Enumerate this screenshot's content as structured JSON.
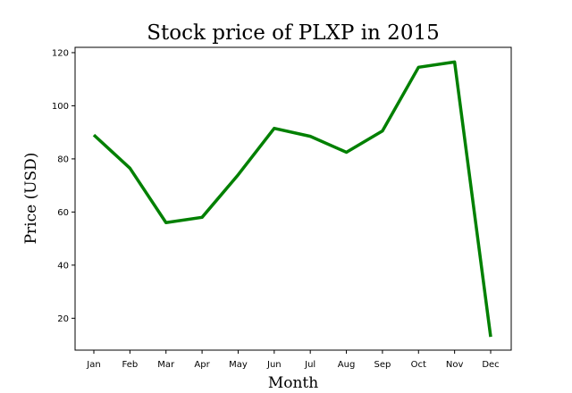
{
  "chart_data": {
    "type": "line",
    "title": "Stock price of PLXP in 2015",
    "xlabel": "Month",
    "ylabel": "Price (USD)",
    "categories": [
      "Jan",
      "Feb",
      "Mar",
      "Apr",
      "May",
      "Jun",
      "Jul",
      "Aug",
      "Sep",
      "Oct",
      "Nov",
      "Dec"
    ],
    "series": [
      {
        "values": [
          89,
          76.5,
          56,
          58,
          74,
          91.5,
          88.5,
          82.5,
          90.5,
          114.5,
          116.5,
          13
        ]
      }
    ],
    "ylim": [
      8,
      122
    ],
    "yticks": [
      20,
      40,
      60,
      80,
      100,
      120
    ],
    "grid": false,
    "line_color": "#008000"
  }
}
